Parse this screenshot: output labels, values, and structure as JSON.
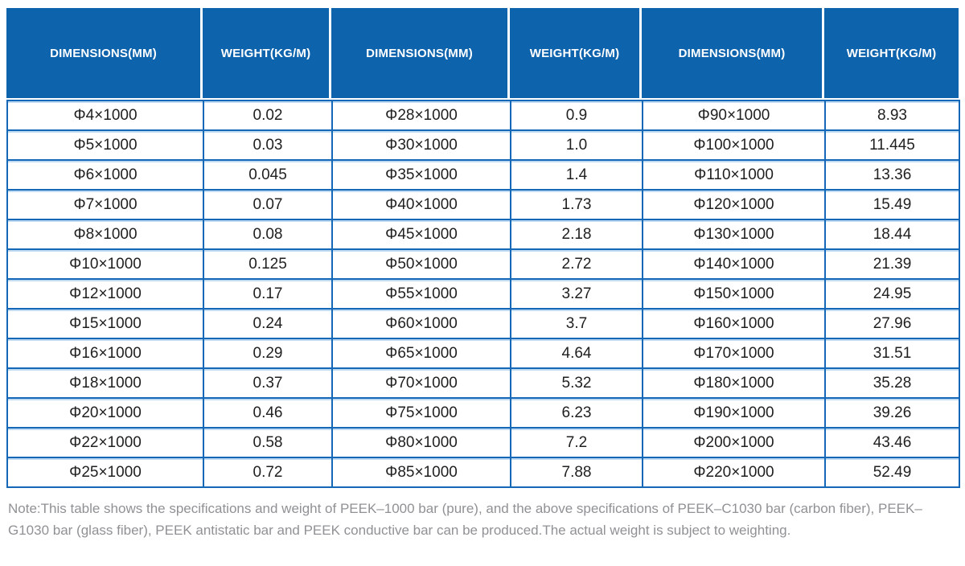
{
  "table": {
    "header": [
      "DIMENSIONS(MM)",
      "WEIGHT(KG/M)",
      "DIMENSIONS(MM)",
      "WEIGHT(KG/M)",
      "DIMENSIONS(MM)",
      "WEIGHT(KG/M)"
    ],
    "rows": [
      [
        "Φ4×1000",
        "0.02",
        "Φ28×1000",
        "0.9",
        "Φ90×1000",
        "8.93"
      ],
      [
        "Φ5×1000",
        "0.03",
        "Φ30×1000",
        "1.0",
        "Φ100×1000",
        "11.445"
      ],
      [
        "Φ6×1000",
        "0.045",
        "Φ35×1000",
        "1.4",
        "Φ110×1000",
        "13.36"
      ],
      [
        "Φ7×1000",
        "0.07",
        "Φ40×1000",
        "1.73",
        "Φ120×1000",
        "15.49"
      ],
      [
        "Φ8×1000",
        "0.08",
        "Φ45×1000",
        "2.18",
        "Φ130×1000",
        "18.44"
      ],
      [
        "Φ10×1000",
        "0.125",
        "Φ50×1000",
        "2.72",
        "Φ140×1000",
        "21.39"
      ],
      [
        "Φ12×1000",
        "0.17",
        "Φ55×1000",
        "3.27",
        "Φ150×1000",
        "24.95"
      ],
      [
        "Φ15×1000",
        "0.24",
        "Φ60×1000",
        "3.7",
        "Φ160×1000",
        "27.96"
      ],
      [
        "Φ16×1000",
        "0.29",
        "Φ65×1000",
        "4.64",
        "Φ170×1000",
        "31.51"
      ],
      [
        "Φ18×1000",
        "0.37",
        "Φ70×1000",
        "5.32",
        "Φ180×1000",
        "35.28"
      ],
      [
        "Φ20×1000",
        "0.46",
        "Φ75×1000",
        "6.23",
        "Φ190×1000",
        "39.26"
      ],
      [
        "Φ22×1000",
        "0.58",
        "Φ80×1000",
        "7.2",
        "Φ200×1000",
        "43.46"
      ],
      [
        "Φ25×1000",
        "0.72",
        "Φ85×1000",
        "7.88",
        "Φ220×1000",
        "52.49"
      ]
    ]
  },
  "note": {
    "text": "Note:This table shows the specifications and weight of PEEK–1000 bar (pure), and the above specifications of PEEK–C1030 bar (carbon fiber), PEEK–G1030 bar (glass fiber), PEEK antistatic bar and PEEK conductive bar can be produced.The actual weight is subject to weighting."
  },
  "colors": {
    "header_bg": "#0e63ad",
    "header_text": "#ffffff",
    "border": "#1568b8",
    "cell_text": "#1f1f1f",
    "note_text": "#8f9194"
  }
}
